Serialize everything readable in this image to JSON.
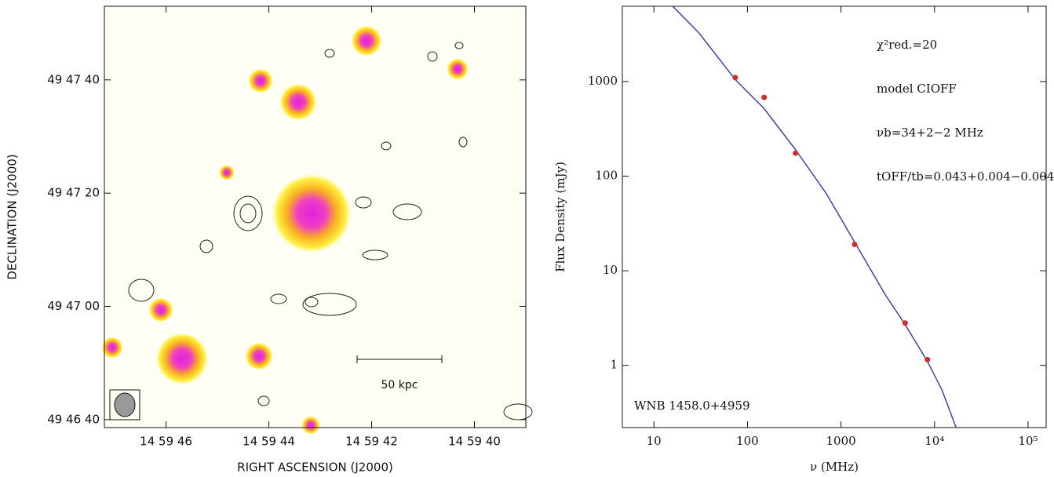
{
  "chart_data": [
    {
      "type": "image",
      "x_label": "RIGHT ASCENSION (J2000)",
      "y_label": "DECLINATION (J2000)",
      "xlim": [
        47.2,
        39.0
      ],
      "ylim": [
        2798.6,
        2873
      ],
      "xticks": [
        {
          "value": 46,
          "label": "14 59 46"
        },
        {
          "value": 44,
          "label": "14 59 44"
        },
        {
          "value": 42,
          "label": "14 59 42"
        },
        {
          "value": 40,
          "label": "14 59 40"
        }
      ],
      "yticks": [
        {
          "value": 2860,
          "label": "49 47 40"
        },
        {
          "value": 2840,
          "label": "49 47 20"
        },
        {
          "value": 2820,
          "label": "49 47 00"
        },
        {
          "value": 2800,
          "label": "49 46 40"
        }
      ],
      "scale_bar_label": "50 kpc"
    },
    {
      "type": "scatter",
      "x_label": "ν (MHz)",
      "y_label": "Flux Density (mJy)",
      "xlog": true,
      "ylog": true,
      "xlim": [
        4.6,
        156000
      ],
      "ylim": [
        0.22,
        6240
      ],
      "xticks": [
        10,
        100,
        1000,
        {
          "value": 10000,
          "label": "10⁴"
        },
        {
          "value": 100000,
          "label": "10⁵"
        }
      ],
      "yticks": [
        1,
        10,
        100,
        1000
      ],
      "series": [
        {
          "color": "#d42a2a",
          "x": [
            74,
            151,
            327,
            1400,
            4850,
            8400
          ],
          "values": [
            1100,
            680,
            175,
            19,
            2.8,
            1.15
          ]
        }
      ],
      "model_curve": {
        "color": "#3a44b0",
        "x": [
          16,
          30,
          74,
          150,
          327,
          700,
          1400,
          3000,
          4850,
          8400,
          12000,
          17000
        ],
        "values": [
          6200,
          3300,
          1050,
          520,
          190,
          65,
          20,
          5.5,
          2.7,
          1.1,
          0.55,
          0.22
        ]
      },
      "annotations": [
        "χ²red.=20",
        "model CIOFF",
        "νb=34+2−2 MHz",
        "tOFF/tb=0.043+0.004−0.004"
      ],
      "source_label": "WNB 1458.0+4959"
    }
  ]
}
